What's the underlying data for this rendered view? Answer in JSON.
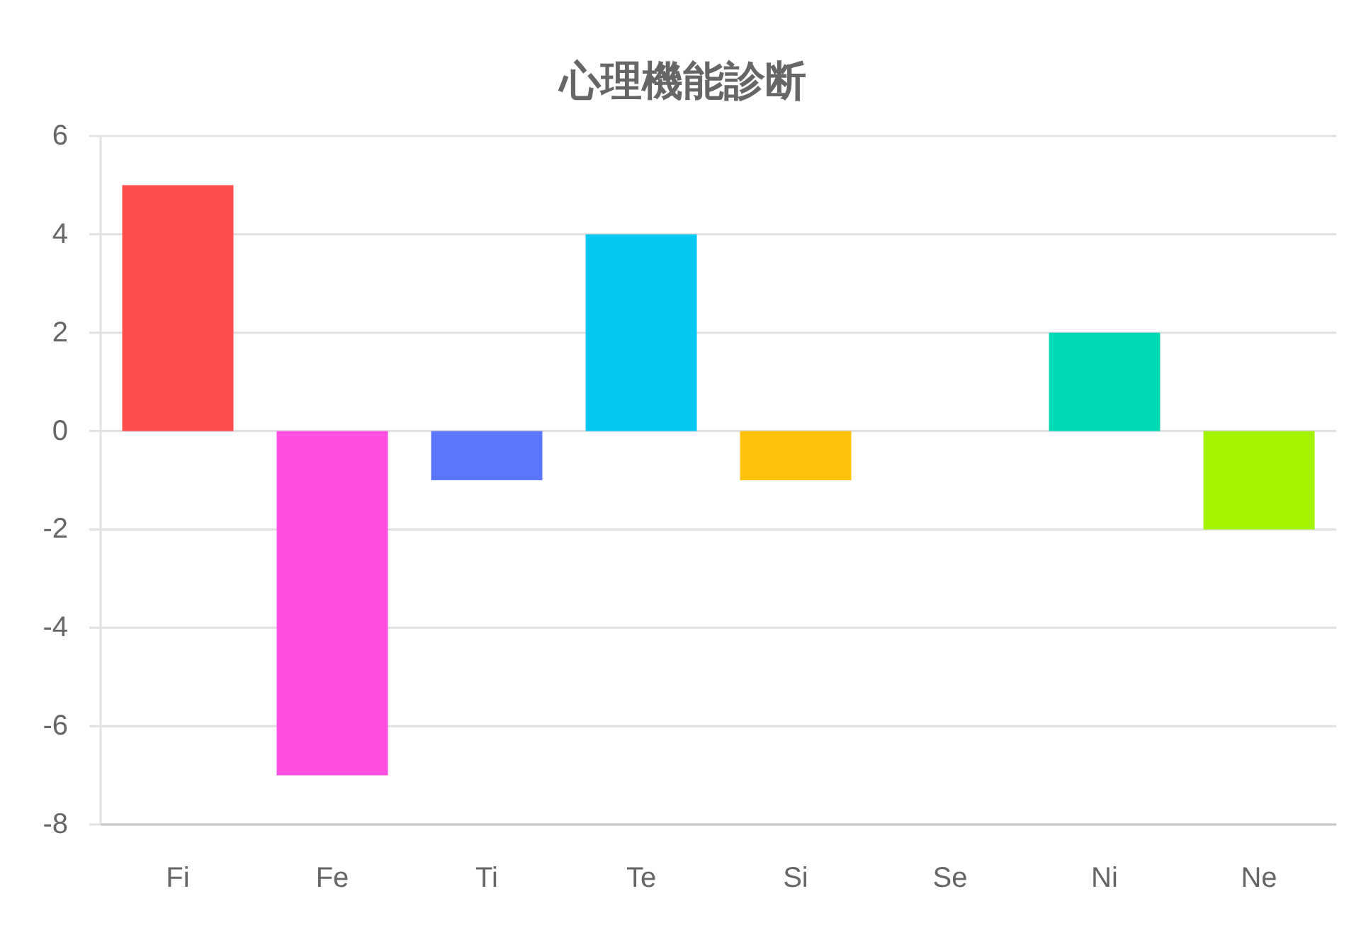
{
  "chart_data": {
    "type": "bar",
    "title": "心理機能診断",
    "categories": [
      "Fi",
      "Fe",
      "Ti",
      "Te",
      "Si",
      "Se",
      "Ni",
      "Ne"
    ],
    "values": [
      5,
      -7,
      -1,
      4,
      -1,
      0,
      2,
      -2
    ],
    "colors": [
      "#ff4d4d",
      "#ff4fe1",
      "#5b76ff",
      "#00c8f0",
      "#ffc10a",
      null,
      "#00d9b5",
      "#a3f200"
    ],
    "ylim": [
      -8,
      6
    ],
    "yticks": [
      -8,
      -6,
      -4,
      -2,
      0,
      2,
      4,
      6
    ],
    "grid": "y"
  }
}
